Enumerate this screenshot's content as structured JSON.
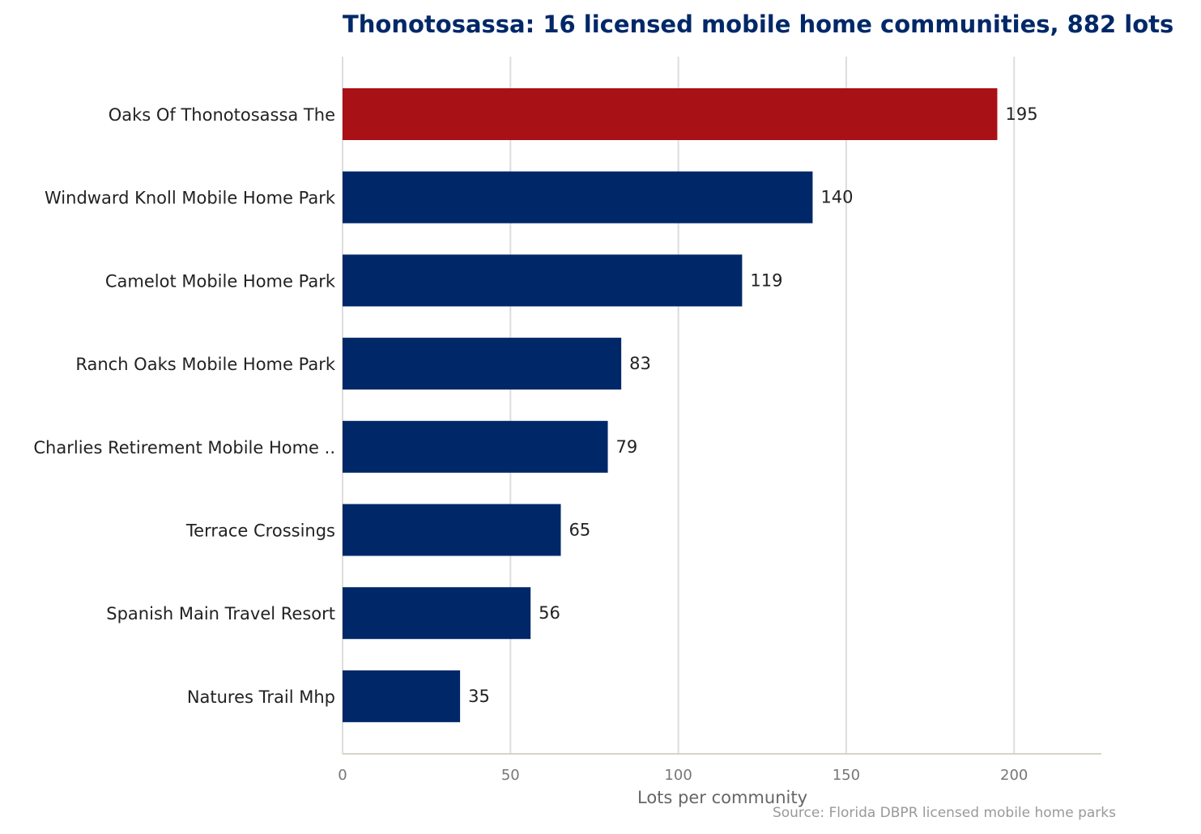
{
  "chart_data": {
    "type": "bar",
    "orientation": "horizontal",
    "title": "Thonotosassa: 16 licensed mobile home communities, 882 lots",
    "xlabel": "Lots per community",
    "ylabel": "",
    "xlim": [
      0,
      226
    ],
    "xticks": [
      0,
      50,
      100,
      150,
      200
    ],
    "grid": true,
    "categories": [
      "Oaks Of Thonotosassa The",
      "Windward Knoll Mobile Home Park",
      "Camelot Mobile Home Park",
      "Ranch Oaks Mobile Home Park",
      "Charlies Retirement Mobile Home ..",
      "Terrace Crossings",
      "Spanish Main Travel Resort",
      "Natures Trail Mhp"
    ],
    "values": [
      195,
      140,
      119,
      83,
      79,
      65,
      56,
      35
    ],
    "highlight_index": 0,
    "colors": {
      "highlight": "#a81116",
      "default": "#002868"
    },
    "source": "Source: Florida DBPR licensed mobile home parks"
  }
}
